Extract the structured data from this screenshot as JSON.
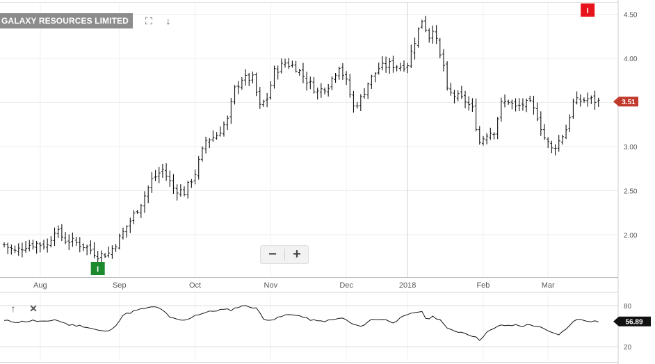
{
  "header": {
    "title": "GALAXY RESOURCES LIMITED",
    "expand_icon": "expand-icon",
    "download_icon": "download-arrow-icon"
  },
  "toolbar": {
    "zoom_out_label": "−",
    "zoom_in_label": "+",
    "indicator_up_icon": "arrow-up-icon",
    "indicator_close_icon": "close-icon"
  },
  "chart_data": [
    {
      "type": "ohlc",
      "title": "GALAXY RESOURCES LIMITED",
      "ylim": [
        1.55,
        4.6
      ],
      "yticks": [
        "2.00",
        "2.50",
        "3.00",
        "3.50",
        "4.00",
        "4.50"
      ],
      "x_labels": [
        {
          "label": "Aug",
          "index": 10
        },
        {
          "label": "Sep",
          "index": 32
        },
        {
          "label": "Oct",
          "index": 53
        },
        {
          "label": "Nov",
          "index": 74
        },
        {
          "label": "Dec",
          "index": 95
        },
        {
          "label": "2018",
          "index": 112
        },
        {
          "label": "Feb",
          "index": 133
        },
        {
          "label": "Mar",
          "index": 151
        }
      ],
      "bars_count": 166,
      "last_price": "3.51",
      "colors": {
        "bars": "#111111",
        "last_price_tag": "#c0392b",
        "grid": "#ececec"
      },
      "markers": [
        {
          "label": "I",
          "index": 26,
          "position": "below",
          "color": "#1e8a2e"
        },
        {
          "label": "I",
          "index": 162,
          "position": "top",
          "color": "#e8141d"
        }
      ],
      "anchors": [
        [
          0,
          1.89
        ],
        [
          3,
          1.81
        ],
        [
          6,
          1.88
        ],
        [
          9,
          1.9
        ],
        [
          12,
          1.88
        ],
        [
          14,
          2.06
        ],
        [
          17,
          1.94
        ],
        [
          20,
          1.91
        ],
        [
          23,
          1.86
        ],
        [
          26,
          1.77
        ],
        [
          29,
          1.79
        ],
        [
          32,
          1.96
        ],
        [
          35,
          2.16
        ],
        [
          38,
          2.36
        ],
        [
          41,
          2.62
        ],
        [
          44,
          2.74
        ],
        [
          47,
          2.53
        ],
        [
          50,
          2.48
        ],
        [
          53,
          2.7
        ],
        [
          56,
          3.07
        ],
        [
          59,
          3.13
        ],
        [
          62,
          3.3
        ],
        [
          64,
          3.65
        ],
        [
          66,
          3.77
        ],
        [
          69,
          3.77
        ],
        [
          71,
          3.45
        ],
        [
          73,
          3.55
        ],
        [
          75,
          3.85
        ],
        [
          78,
          3.95
        ],
        [
          81,
          3.9
        ],
        [
          84,
          3.75
        ],
        [
          87,
          3.62
        ],
        [
          90,
          3.7
        ],
        [
          93,
          3.92
        ],
        [
          95,
          3.73
        ],
        [
          97,
          3.45
        ],
        [
          99,
          3.54
        ],
        [
          101,
          3.72
        ],
        [
          104,
          3.89
        ],
        [
          107,
          3.93
        ],
        [
          110,
          3.91
        ],
        [
          112,
          3.94
        ],
        [
          114,
          4.2
        ],
        [
          116,
          4.44
        ],
        [
          118,
          4.25
        ],
        [
          119,
          4.35
        ],
        [
          121,
          4.02
        ],
        [
          122,
          3.92
        ],
        [
          123,
          3.62
        ],
        [
          126,
          3.56
        ],
        [
          128,
          3.52
        ],
        [
          130,
          3.42
        ],
        [
          132,
          3.05
        ],
        [
          134,
          3.15
        ],
        [
          136,
          3.18
        ],
        [
          138,
          3.48
        ],
        [
          140,
          3.52
        ],
        [
          142,
          3.44
        ],
        [
          144,
          3.48
        ],
        [
          146,
          3.48
        ],
        [
          148,
          3.35
        ],
        [
          150,
          3.1
        ],
        [
          152,
          2.97
        ],
        [
          154,
          3.06
        ],
        [
          156,
          3.2
        ],
        [
          158,
          3.5
        ],
        [
          160,
          3.52
        ],
        [
          162,
          3.54
        ],
        [
          165,
          3.51
        ]
      ]
    },
    {
      "type": "line",
      "title": "",
      "ylim": [
        20,
        80
      ],
      "yticks": [
        "20",
        "80"
      ],
      "last_value": "56.89",
      "colors": {
        "line": "#111111",
        "value_tag": "#111111"
      },
      "anchors": [
        [
          0,
          58
        ],
        [
          4,
          56
        ],
        [
          8,
          58
        ],
        [
          12,
          56
        ],
        [
          14,
          60
        ],
        [
          18,
          52
        ],
        [
          22,
          50
        ],
        [
          26,
          44
        ],
        [
          28,
          42
        ],
        [
          30,
          45
        ],
        [
          33,
          66
        ],
        [
          36,
          72
        ],
        [
          39,
          76
        ],
        [
          42,
          78
        ],
        [
          44,
          74
        ],
        [
          46,
          62
        ],
        [
          50,
          58
        ],
        [
          53,
          66
        ],
        [
          56,
          70
        ],
        [
          60,
          74
        ],
        [
          63,
          74
        ],
        [
          66,
          80
        ],
        [
          70,
          77
        ],
        [
          72,
          60
        ],
        [
          75,
          60
        ],
        [
          78,
          66
        ],
        [
          81,
          67
        ],
        [
          84,
          61
        ],
        [
          87,
          57
        ],
        [
          90,
          58
        ],
        [
          94,
          62
        ],
        [
          96,
          55
        ],
        [
          98,
          50
        ],
        [
          100,
          52
        ],
        [
          102,
          60
        ],
        [
          105,
          60
        ],
        [
          108,
          56
        ],
        [
          111,
          64
        ],
        [
          114,
          70
        ],
        [
          116,
          72
        ],
        [
          117,
          60
        ],
        [
          119,
          64
        ],
        [
          121,
          60
        ],
        [
          123,
          46
        ],
        [
          126,
          42
        ],
        [
          128,
          40
        ],
        [
          130,
          36
        ],
        [
          132,
          30
        ],
        [
          134,
          41
        ],
        [
          136,
          46
        ],
        [
          138,
          52
        ],
        [
          140,
          50
        ],
        [
          142,
          52
        ],
        [
          144,
          50
        ],
        [
          146,
          52
        ],
        [
          148,
          50
        ],
        [
          150,
          45
        ],
        [
          152,
          40
        ],
        [
          154,
          38
        ],
        [
          156,
          45
        ],
        [
          158,
          58
        ],
        [
          160,
          60
        ],
        [
          162,
          58
        ],
        [
          165,
          57
        ]
      ]
    }
  ]
}
